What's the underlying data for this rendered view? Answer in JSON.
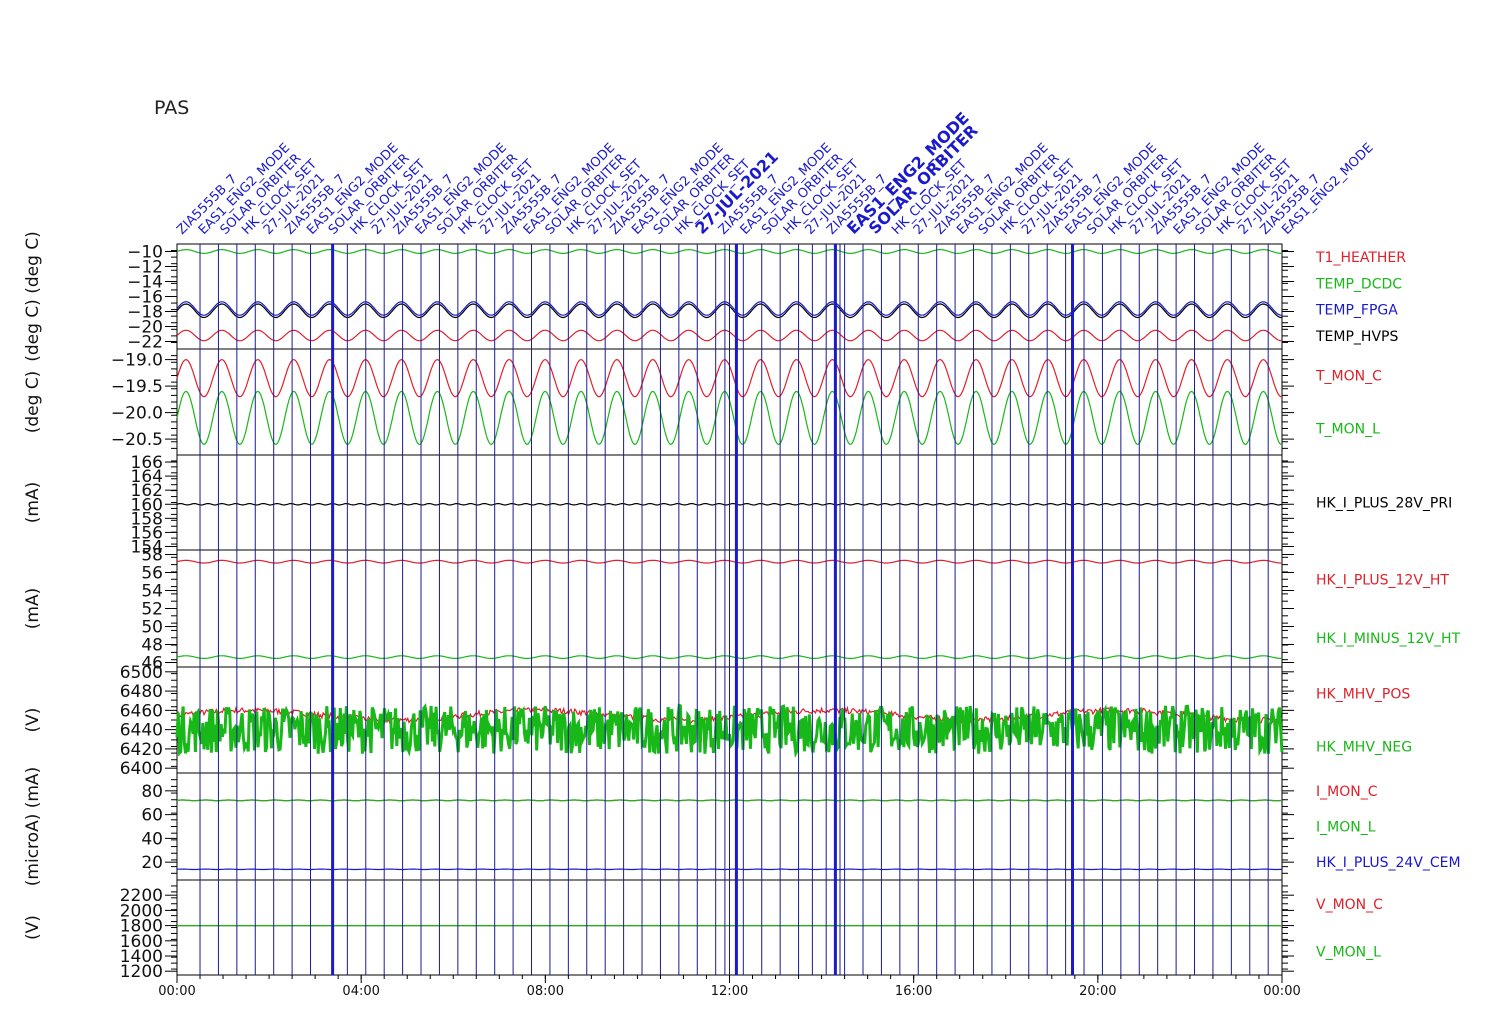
{
  "header": {
    "instrument": "PAS",
    "event_labels_note": "Slanted event annotations along top, e.g. ENG2_MODE, EAS1_ENG2_MODE, SOLAR_ORBITER, HK_CLOCK_SET, 27-JUL-2021"
  },
  "annotation_texts": [
    "ZIA5555B_7",
    "EAS1_ENG2_MODE",
    "SOLAR_ORBITER",
    "HK_CLOCK_SET",
    "27-JUL-2021"
  ],
  "time_axis": {
    "ticks": [
      "00:00",
      "04:00",
      "08:00",
      "12:00",
      "16:00",
      "20:00",
      "00:00"
    ],
    "range_hours": [
      0,
      24
    ]
  },
  "colors": {
    "red": "#e0202a",
    "green": "#18b818",
    "blue": "#1a1acc",
    "black": "#000000",
    "frame": "#000000",
    "event_line": "#1a1a9a"
  },
  "chart_data": [
    {
      "type": "line",
      "ylabel": "(deg C)  (deg C)",
      "ylim": [
        -23,
        -9
      ],
      "yticks": [
        -10,
        -12,
        -14,
        -16,
        -18,
        -20,
        -22
      ],
      "ytick_labels": [
        "−10",
        "−12",
        "−14",
        "−16",
        "−18",
        "−20",
        "−22"
      ],
      "legend_placement": "right",
      "series": [
        {
          "name": "T1_HEATHER",
          "color": "red",
          "base": -21.2,
          "amp": 0.7,
          "period_h": 0.78
        },
        {
          "name": "TEMP_DCDC",
          "color": "green",
          "base": -10.0,
          "amp": 0.25,
          "period_h": 0.78
        },
        {
          "name": "TEMP_FPGA",
          "color": "blue",
          "base": -17.6,
          "amp": 0.9,
          "period_h": 0.78
        },
        {
          "name": "TEMP_HVPS",
          "color": "black",
          "base": -17.9,
          "amp": 0.9,
          "period_h": 0.78
        }
      ]
    },
    {
      "type": "line",
      "ylabel": "(deg C)",
      "ylim": [
        -20.8,
        -18.8
      ],
      "yticks": [
        -19.0,
        -19.5,
        -20.0,
        -20.5
      ],
      "ytick_labels": [
        "−19.0",
        "−19.5",
        "−20.0",
        "−20.5"
      ],
      "legend_placement": "right",
      "series": [
        {
          "name": "T_MON_C",
          "color": "red",
          "base": -19.35,
          "amp": 0.35,
          "period_h": 0.78
        },
        {
          "name": "T_MON_L",
          "color": "green",
          "base": -20.1,
          "amp": 0.5,
          "period_h": 0.78
        }
      ]
    },
    {
      "type": "line",
      "ylabel": "(mA)",
      "ylim": [
        153.5,
        167
      ],
      "yticks": [
        166,
        164,
        162,
        160,
        158,
        156,
        154
      ],
      "ytick_labels": [
        "166",
        "164",
        "162",
        "160",
        "158",
        "156",
        "154"
      ],
      "legend_placement": "right",
      "series": [
        {
          "name": "HK_I_PLUS_28V_PRI",
          "color": "black",
          "base": 160.0,
          "amp": 0.1,
          "period_h": 0.3
        }
      ]
    },
    {
      "type": "line",
      "ylabel": "(mA)",
      "ylim": [
        45.5,
        58.5
      ],
      "yticks": [
        58,
        56,
        54,
        52,
        50,
        48,
        46
      ],
      "ytick_labels": [
        "58",
        "56",
        "54",
        "52",
        "50",
        "48",
        "46"
      ],
      "legend_placement": "right",
      "series": [
        {
          "name": "HK_I_PLUS_12V_HT",
          "color": "red",
          "base": 57.2,
          "amp": 0.15,
          "period_h": 0.78
        },
        {
          "name": "HK_I_MINUS_12V_HT",
          "color": "green",
          "base": 46.6,
          "amp": 0.15,
          "period_h": 0.78
        }
      ]
    },
    {
      "type": "line",
      "ylabel": "(V)",
      "ylim": [
        6395,
        6505
      ],
      "yticks": [
        6500,
        6480,
        6460,
        6440,
        6420,
        6400
      ],
      "ytick_labels": [
        "6500",
        "6480",
        "6460",
        "6440",
        "6420",
        "6400"
      ],
      "legend_placement": "right",
      "series": [
        {
          "name": "HK_MHV_POS",
          "color": "red",
          "base": 6455,
          "amp": 5,
          "period_h": 1.5
        },
        {
          "name": "HK_MHV_NEG",
          "color": "green",
          "base": 6440,
          "amp": 25,
          "period_h": 0.05
        }
      ]
    },
    {
      "type": "line",
      "ylabel": "(microA)  (mA)",
      "ylim": [
        5,
        95
      ],
      "yticks": [
        80,
        60,
        40,
        20
      ],
      "ytick_labels": [
        "80",
        "60",
        "40",
        "20"
      ],
      "legend_placement": "right",
      "series": [
        {
          "name": "I_MON_C",
          "color": "red",
          "base": 72,
          "amp": 0.3,
          "period_h": 0.5
        },
        {
          "name": "I_MON_L",
          "color": "green",
          "base": 72,
          "amp": 0.3,
          "period_h": 0.5
        },
        {
          "name": "HK_I_PLUS_24V_CEM",
          "color": "blue",
          "base": 14,
          "amp": 0.2,
          "period_h": 0.5
        }
      ]
    },
    {
      "type": "line",
      "ylabel": "(V)",
      "ylim": [
        1150,
        2400
      ],
      "yticks": [
        2200,
        2000,
        1800,
        1600,
        1400,
        1200
      ],
      "ytick_labels": [
        "2200",
        "2000",
        "1800",
        "1600",
        "1400",
        "1200"
      ],
      "legend_placement": "right",
      "series": [
        {
          "name": "V_MON_C",
          "color": "red",
          "base": 1800,
          "amp": 0,
          "period_h": 1
        },
        {
          "name": "V_MON_L",
          "color": "green",
          "base": 1800,
          "amp": 0,
          "period_h": 1
        }
      ]
    }
  ],
  "events": {
    "description": "vertical event markers in hours",
    "hours": [
      0.5,
      0.9,
      1.3,
      1.7,
      2.1,
      2.5,
      2.9,
      3.38,
      3.7,
      4.1,
      4.5,
      4.9,
      5.3,
      5.7,
      6.1,
      6.5,
      6.9,
      7.3,
      7.7,
      8.1,
      8.5,
      8.9,
      9.3,
      9.7,
      10.1,
      10.5,
      10.9,
      11.3,
      11.7,
      11.9,
      12.0,
      12.15,
      12.3,
      12.7,
      13.1,
      13.5,
      13.8,
      14.1,
      14.3,
      14.4,
      14.5,
      14.9,
      15.3,
      15.7,
      16.1,
      16.5,
      16.9,
      17.3,
      17.7,
      18.1,
      18.5,
      18.9,
      19.3,
      19.45,
      19.7,
      20.1,
      20.5,
      20.9,
      21.3,
      21.7,
      22.1,
      22.5,
      22.9,
      23.3,
      23.7
    ],
    "bold_hours": [
      3.38,
      12.15,
      14.3,
      14.45,
      19.45
    ]
  }
}
